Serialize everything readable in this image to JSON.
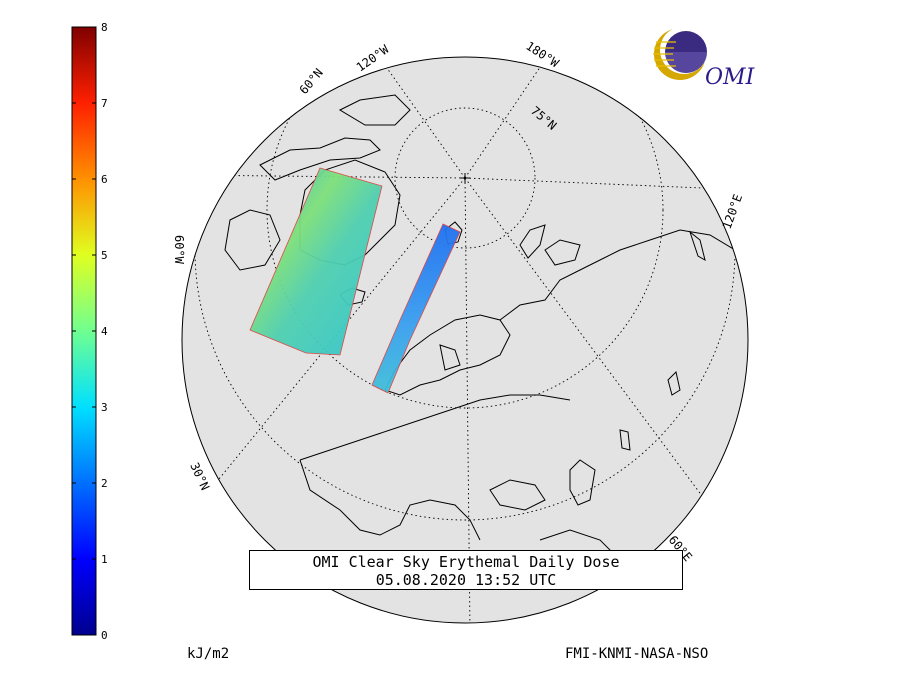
{
  "title": {
    "line1": "OMI Clear Sky Erythemal Daily Dose",
    "line2": "05.08.2020 13:52 UTC"
  },
  "colorbar": {
    "ticks": [
      "0",
      "1",
      "2",
      "3",
      "4",
      "5",
      "6",
      "7",
      "8"
    ],
    "min": 0,
    "max": 8,
    "colormap": "jet",
    "unit": "kJ/m2"
  },
  "credit": "FMI-KNMI-NASA-NSO",
  "logo": {
    "text": "OMI"
  },
  "map": {
    "projection": "polar orthographic, north pole",
    "land_color": "#e3e3e3",
    "coast_color": "#000000",
    "graticule_style": "dotted",
    "lat_labels": [
      "30°N",
      "60°N",
      "75°N"
    ],
    "lon_labels": [
      "180°W",
      "120°W",
      "60°W",
      "120°E",
      "60°E"
    ],
    "swaths": [
      {
        "name": "swath-west",
        "dominant_value_kJ_m2": 3,
        "peak_value_kJ_m2": 4.5
      },
      {
        "name": "swath-east",
        "dominant_value_kJ_m2": 1.7,
        "peak_value_kJ_m2": 2.6
      }
    ]
  },
  "colors": {
    "globe_fill": "#e3e3e3",
    "frame": "#000000"
  }
}
